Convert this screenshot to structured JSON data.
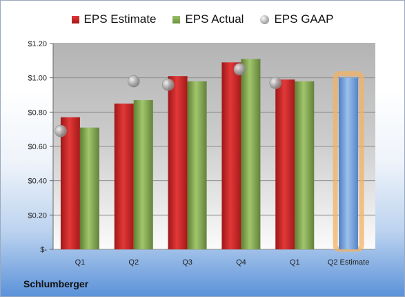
{
  "chart_data": {
    "type": "bar",
    "categories": [
      "Q1",
      "Q2",
      "Q3",
      "Q4",
      "Q1",
      "Q2 Estimate"
    ],
    "series": [
      {
        "name": "EPS Estimate",
        "values": [
          0.77,
          0.85,
          1.01,
          1.09,
          0.99,
          null
        ],
        "color": "#c82828"
      },
      {
        "name": "EPS Actual",
        "values": [
          0.71,
          0.87,
          0.98,
          1.11,
          0.98,
          null
        ],
        "color": "#86a94f"
      },
      {
        "name": "EPS GAAP",
        "type": "scatter",
        "values": [
          0.69,
          0.98,
          0.96,
          1.05,
          0.97,
          null
        ],
        "color": "#a0a0a0"
      },
      {
        "name": "Q2 Estimate",
        "values": [
          null,
          null,
          null,
          null,
          null,
          1.0
        ],
        "color": "#7aa4db",
        "highlight": "#f2b166"
      }
    ],
    "yticks": [
      "$-",
      "$0.20",
      "$0.40",
      "$0.60",
      "$0.80",
      "$1.00",
      "$1.20"
    ],
    "ylim": [
      0,
      1.2
    ],
    "legend": "top",
    "grid": true
  },
  "company": "Schlumberger"
}
